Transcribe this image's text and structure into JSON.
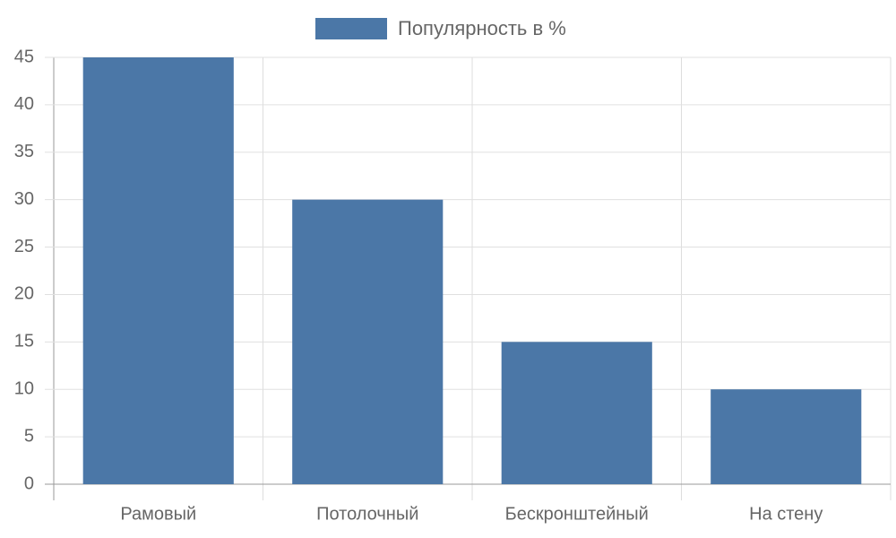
{
  "chart_data": {
    "type": "bar",
    "categories": [
      "Рамовый",
      "Потолочный",
      "Бескронштейный",
      "На стену"
    ],
    "series": [
      {
        "name": "Популярность в %",
        "color": "#4b77a7",
        "values": [
          45,
          30,
          15,
          10
        ]
      }
    ],
    "ylim": [
      0,
      45
    ],
    "yticks": [
      0,
      5,
      10,
      15,
      20,
      25,
      30,
      35,
      40,
      45
    ],
    "grid": true,
    "legend": "top"
  }
}
